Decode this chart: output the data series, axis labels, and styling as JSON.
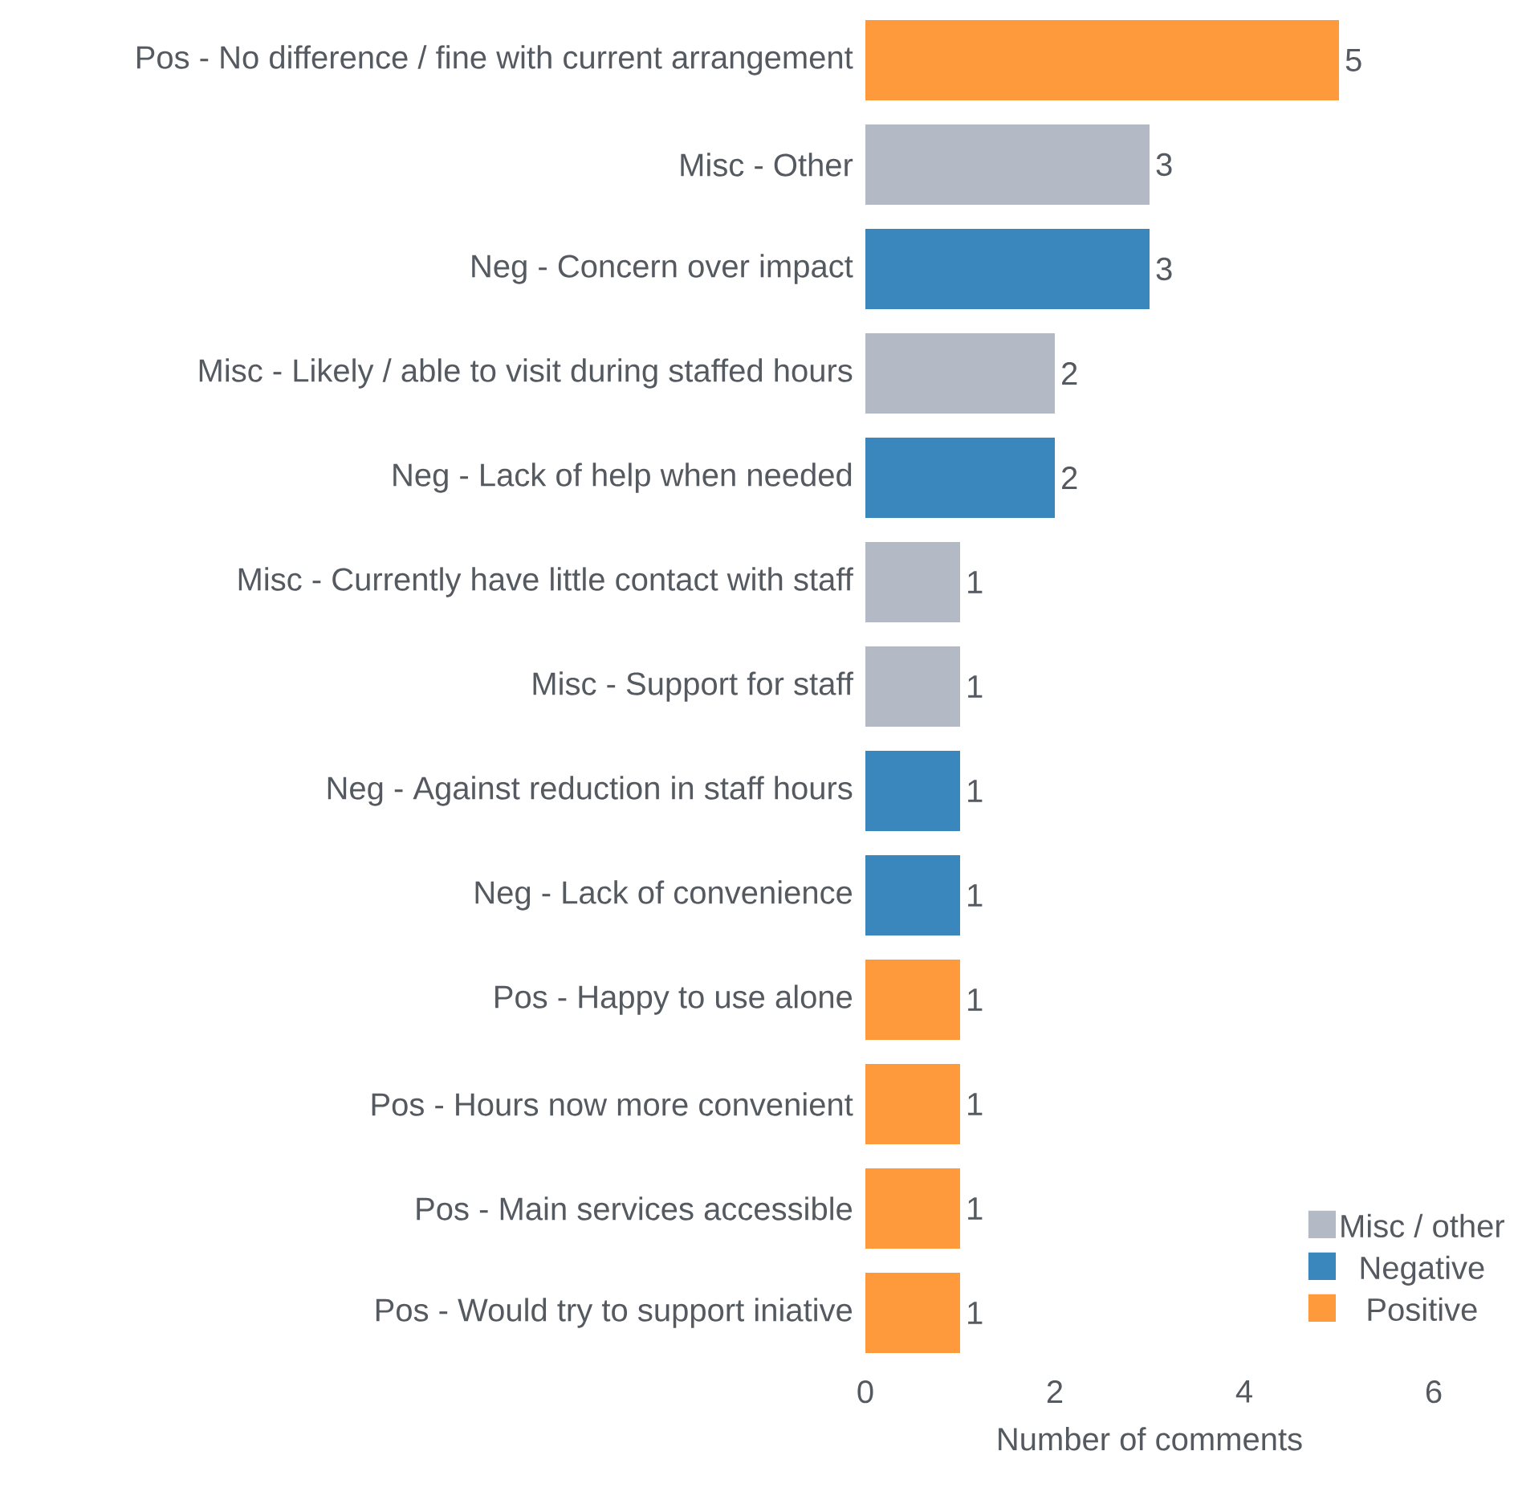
{
  "chart_data": {
    "type": "bar",
    "orientation": "horizontal",
    "xlabel": "Number of comments",
    "categories": [
      "Pos - No difference / fine with current arrangement",
      "Misc - Other",
      "Neg - Concern over impact",
      "Misc - Likely / able to visit during staffed hours",
      "Neg - Lack of help when needed",
      "Misc - Currently have little contact with staff",
      "Misc - Support for staff",
      "Neg - Against reduction in staff hours",
      "Neg - Lack of convenience",
      "Pos - Happy to use alone",
      "Pos - Hours now more convenient",
      "Pos - Main services accessible",
      "Pos - Would try to support iniative"
    ],
    "series": [
      {
        "name": "Misc / other",
        "color": "#b4b9c6",
        "values": [
          null,
          3,
          null,
          2,
          null,
          1,
          1,
          null,
          null,
          null,
          null,
          null,
          null
        ]
      },
      {
        "name": "Negative",
        "color": "#3a87bd",
        "values": [
          null,
          null,
          3,
          null,
          2,
          null,
          null,
          1,
          1,
          null,
          null,
          null,
          null
        ]
      },
      {
        "name": "Positive",
        "color": "#fe9a3c",
        "values": [
          5,
          null,
          null,
          null,
          null,
          null,
          null,
          null,
          null,
          1,
          1,
          1,
          1
        ]
      }
    ],
    "xlim": [
      0,
      6
    ],
    "xticks": [
      0,
      2,
      4,
      6
    ],
    "data_labels": true,
    "legend": "bottom right",
    "grid": false
  }
}
